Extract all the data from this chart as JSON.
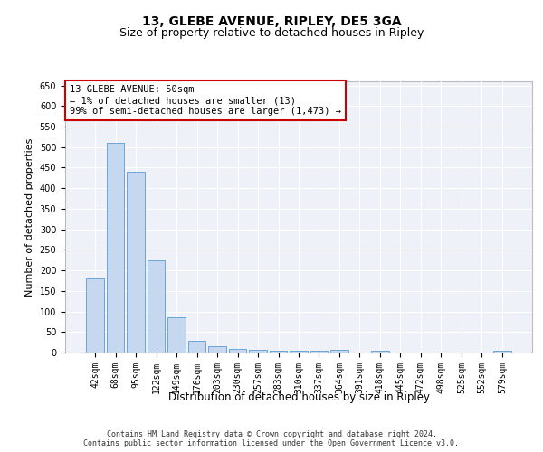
{
  "title_line1": "13, GLEBE AVENUE, RIPLEY, DE5 3GA",
  "title_line2": "Size of property relative to detached houses in Ripley",
  "xlabel": "Distribution of detached houses by size in Ripley",
  "ylabel": "Number of detached properties",
  "categories": [
    "42sqm",
    "68sqm",
    "95sqm",
    "122sqm",
    "149sqm",
    "176sqm",
    "203sqm",
    "230sqm",
    "257sqm",
    "283sqm",
    "310sqm",
    "337sqm",
    "364sqm",
    "391sqm",
    "418sqm",
    "445sqm",
    "472sqm",
    "498sqm",
    "525sqm",
    "552sqm",
    "579sqm"
  ],
  "values": [
    180,
    510,
    440,
    225,
    85,
    28,
    15,
    8,
    6,
    5,
    5,
    5,
    6,
    0,
    5,
    0,
    0,
    0,
    0,
    0,
    5
  ],
  "bar_color": "#c5d8f0",
  "bar_edge_color": "#5b9bd5",
  "annotation_box_color": "#ffffff",
  "annotation_box_edge": "#cc0000",
  "annotation_text": "13 GLEBE AVENUE: 50sqm\n← 1% of detached houses are smaller (13)\n99% of semi-detached houses are larger (1,473) →",
  "ylim": [
    0,
    660
  ],
  "yticks": [
    0,
    50,
    100,
    150,
    200,
    250,
    300,
    350,
    400,
    450,
    500,
    550,
    600,
    650
  ],
  "footer_line1": "Contains HM Land Registry data © Crown copyright and database right 2024.",
  "footer_line2": "Contains public sector information licensed under the Open Government Licence v3.0.",
  "background_color": "#eef2f8",
  "grid_color": "#ffffff",
  "title_fontsize": 10,
  "subtitle_fontsize": 9,
  "axis_label_fontsize": 8,
  "tick_fontsize": 7,
  "annotation_fontsize": 7.5,
  "footer_fontsize": 6
}
